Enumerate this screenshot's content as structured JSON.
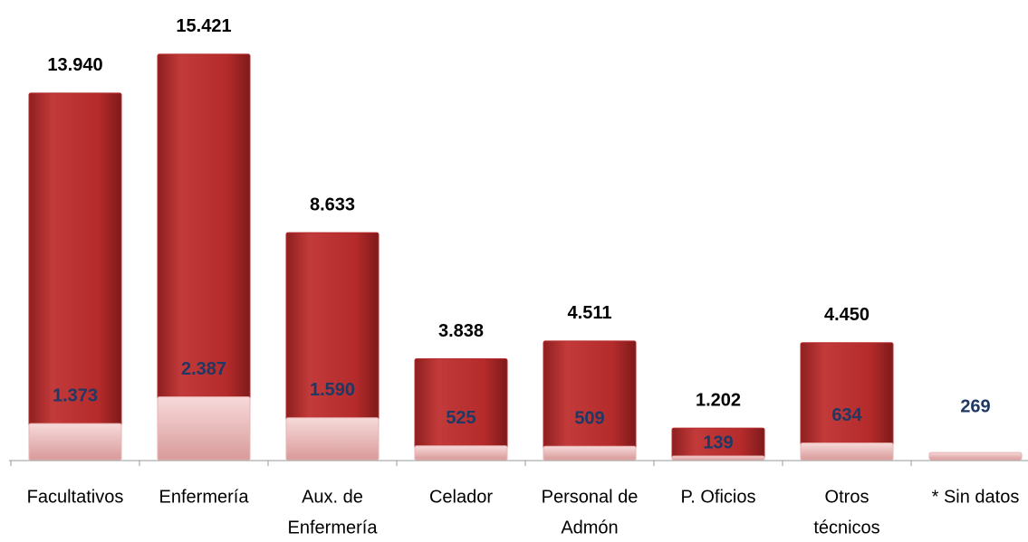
{
  "chart_data": {
    "type": "bar",
    "categories": [
      [
        "Facultativos"
      ],
      [
        "Enfermería"
      ],
      [
        "Aux. de",
        "Enfermería"
      ],
      [
        "Celador"
      ],
      [
        "Personal de",
        "Admón"
      ],
      [
        "P. Oficios"
      ],
      [
        "Otros",
        "técnicos"
      ],
      [
        "* Sin datos"
      ]
    ],
    "series": [
      {
        "color": "#b52b2b",
        "label_color": "#000000",
        "values": [
          13940,
          15421,
          8633,
          3838,
          4511,
          1202,
          4450,
          null
        ],
        "value_labels": [
          "13.940",
          "15.421",
          "8.633",
          "3.838",
          "4.511",
          "1.202",
          "4.450",
          null
        ]
      },
      {
        "color": "#e9b3b3",
        "label_color": "#1f3864",
        "values": [
          1373,
          2387,
          1590,
          525,
          509,
          139,
          634,
          269
        ],
        "value_labels": [
          "1.373",
          "2.387",
          "1.590",
          "525",
          "509",
          "139",
          "634",
          "269"
        ]
      }
    ],
    "ylim": [
      0,
      17000
    ]
  }
}
